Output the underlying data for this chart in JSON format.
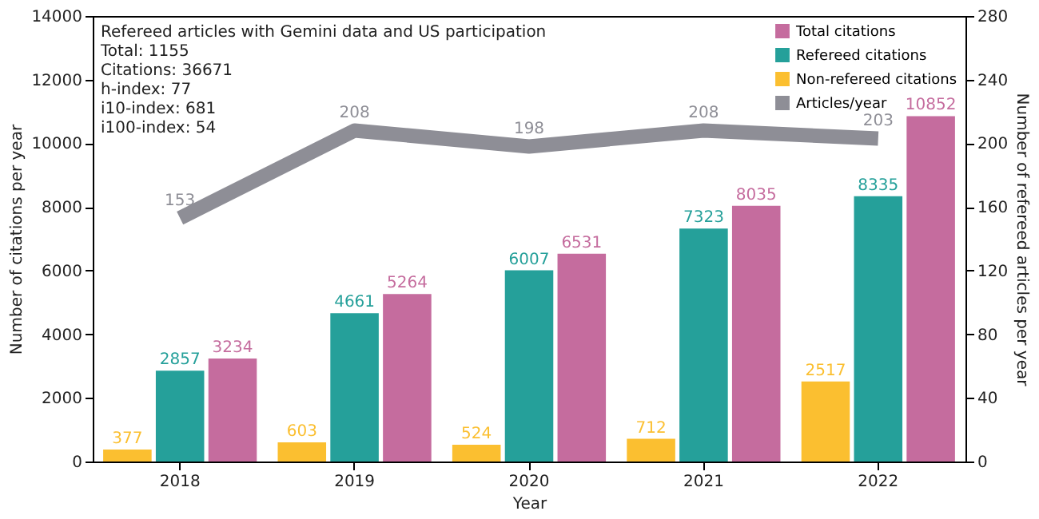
{
  "chart_data": {
    "type": "bar",
    "categories": [
      "2018",
      "2019",
      "2020",
      "2021",
      "2022"
    ],
    "xlabel": "Year",
    "ylabel": "Number of citations per year",
    "y2label": "Number of refereed articles per year",
    "ylim": [
      0,
      14000
    ],
    "yticks": [
      0,
      2000,
      4000,
      6000,
      8000,
      10000,
      12000,
      14000
    ],
    "y2lim": [
      0,
      280
    ],
    "y2ticks": [
      0,
      40,
      80,
      120,
      160,
      200,
      240,
      280
    ],
    "legend": "top right",
    "data_labels": true,
    "annotations": [
      "Refereed articles with Gemini data and US participation",
      "Total: 1155",
      "Citations: 36671",
      "h-index: 77",
      "i10-index: 681",
      "i100-index: 54"
    ],
    "series": [
      {
        "name": "Non-refereed citations",
        "color": "#fbbf30",
        "values": [
          377,
          603,
          524,
          712,
          2517
        ]
      },
      {
        "name": "Refereed citations",
        "color": "#25a09a",
        "values": [
          2857,
          4661,
          6007,
          7323,
          8335
        ]
      },
      {
        "name": "Total citations",
        "color": "#c56c9e",
        "values": [
          3234,
          5264,
          6531,
          8035,
          10852
        ]
      },
      {
        "name": "Articles/year",
        "type": "line",
        "axis": "y2",
        "color": "#8e8e96",
        "values": [
          153,
          208,
          198,
          208,
          203
        ]
      }
    ]
  }
}
